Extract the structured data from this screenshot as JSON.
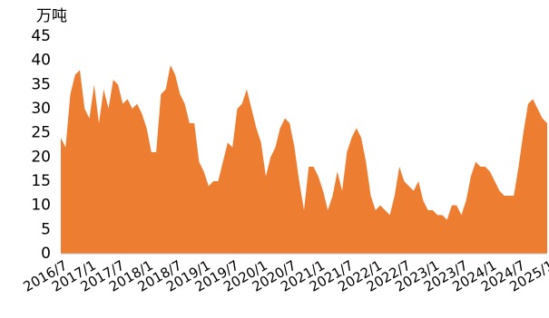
{
  "chart_data": {
    "type": "area",
    "y_unit": "万吨",
    "categories": [
      "2016/7",
      null,
      null,
      null,
      null,
      null,
      "2017/1",
      null,
      null,
      null,
      null,
      null,
      "2017/7",
      null,
      null,
      null,
      null,
      null,
      "2018/1",
      null,
      null,
      null,
      null,
      null,
      "2018/7",
      null,
      null,
      null,
      null,
      null,
      "2019/1",
      null,
      null,
      null,
      null,
      null,
      "2019/7",
      null,
      null,
      null,
      null,
      null,
      "2020/1",
      null,
      null,
      null,
      null,
      null,
      "2020/7",
      null,
      null,
      null,
      null,
      null,
      "2021/1",
      null,
      null,
      null,
      null,
      null,
      "2021/7",
      null,
      null,
      null,
      null,
      null,
      "2022/1",
      null,
      null,
      null,
      null,
      null,
      "2022/7",
      null,
      null,
      null,
      null,
      null,
      "2023/1",
      null,
      null,
      null,
      null,
      null,
      "2023/7",
      null,
      null,
      null,
      null,
      null,
      "2024/1",
      null,
      null,
      null,
      null,
      null,
      "2024/7",
      null,
      null,
      null,
      null,
      null,
      "2025/1"
    ],
    "values": [
      24,
      22,
      33,
      37,
      38,
      30,
      28,
      35,
      27,
      34,
      30,
      36,
      35,
      31,
      32,
      30,
      31,
      29,
      26,
      21,
      21,
      33,
      34,
      39,
      37,
      33,
      31,
      27,
      27,
      19,
      17,
      14,
      15,
      15,
      19,
      23,
      22,
      30,
      31,
      34,
      30,
      26,
      23,
      16,
      20,
      22,
      26,
      28,
      27,
      22,
      15,
      9,
      18,
      18,
      16,
      13,
      9,
      12,
      17,
      13,
      21,
      24,
      26,
      24,
      19,
      12,
      9,
      10,
      9,
      8,
      12,
      18,
      15,
      14,
      13,
      15,
      11,
      9,
      9,
      8,
      8,
      7,
      10,
      10,
      8,
      11,
      16,
      19,
      18,
      18,
      17,
      15,
      13,
      12,
      12,
      12,
      18,
      25,
      31,
      32,
      30,
      28,
      27
    ],
    "color": "#ed7d31",
    "ylim": [
      0,
      45
    ],
    "yticks": [
      0,
      5,
      10,
      15,
      20,
      25,
      30,
      35,
      40,
      45
    ]
  }
}
